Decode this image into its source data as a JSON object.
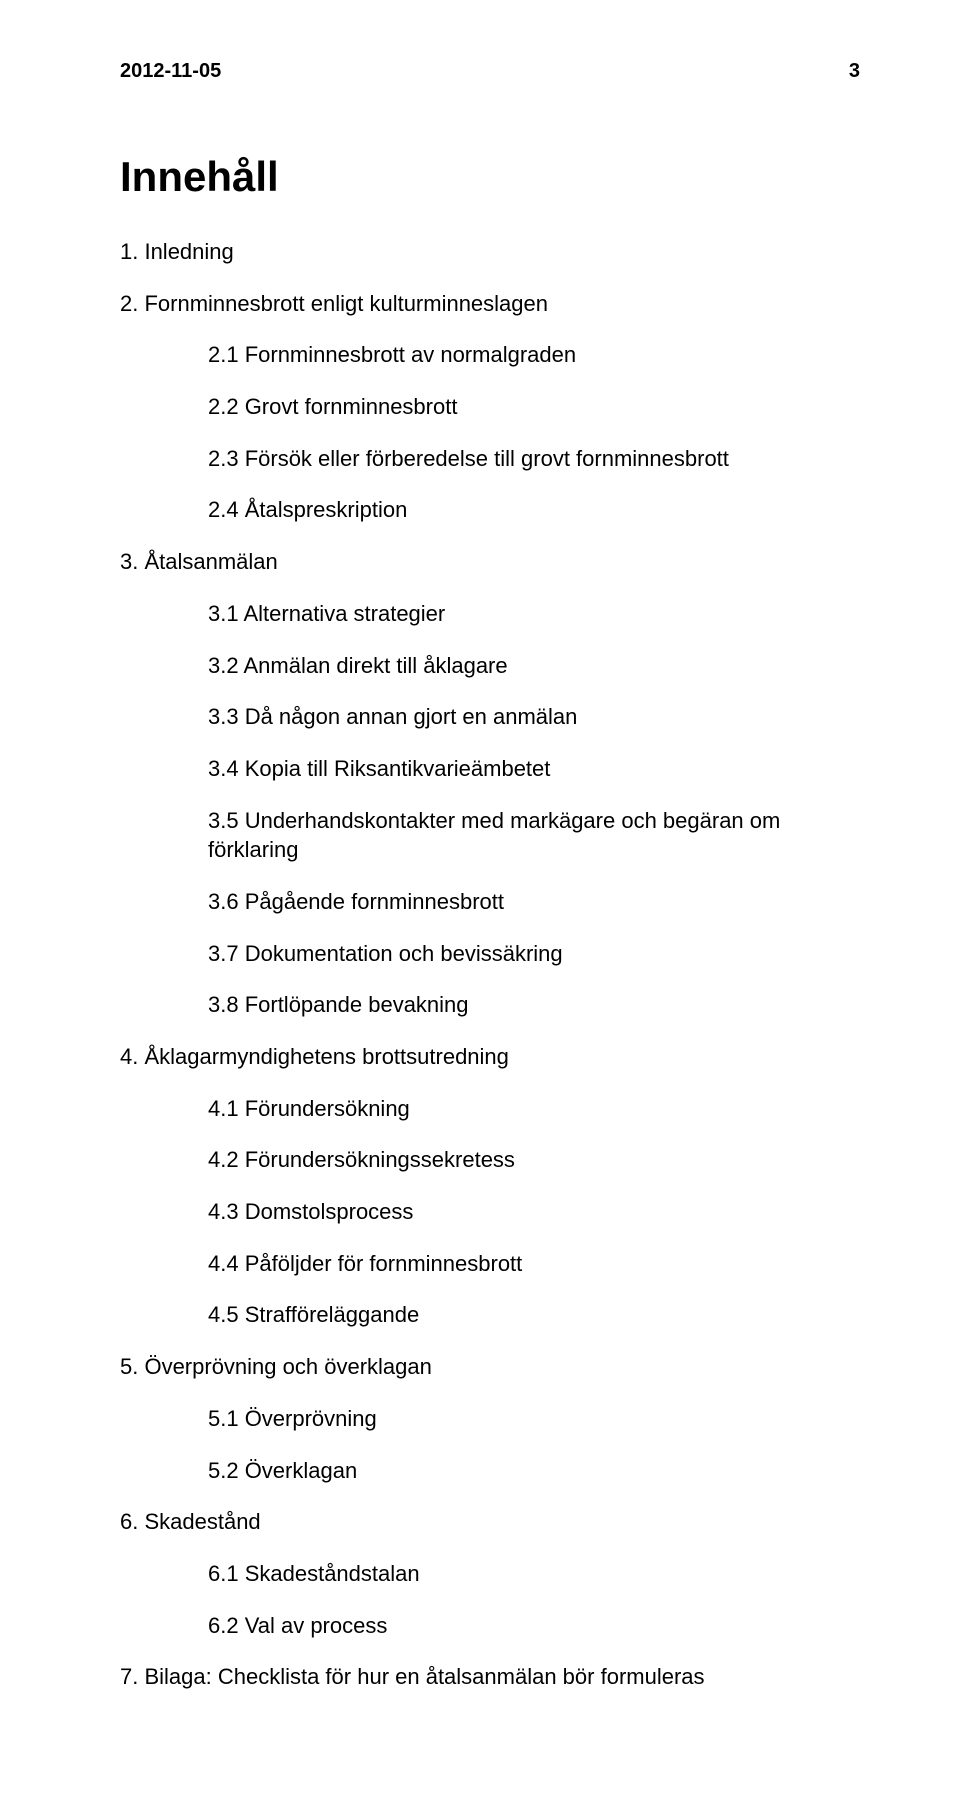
{
  "header": {
    "date": "2012-11-05",
    "page_number": "3"
  },
  "title": "Innehåll",
  "toc": {
    "s1": {
      "heading": "1. Inledning"
    },
    "s2": {
      "heading": "2. Fornminnesbrott enligt kulturminneslagen",
      "items": {
        "i1": "2.1 Fornminnesbrott av normalgraden",
        "i2": "2.2 Grovt fornminnesbrott",
        "i3": "2.3 Försök eller förberedelse till grovt fornminnesbrott",
        "i4": "2.4 Åtalspreskription"
      }
    },
    "s3": {
      "heading": "3. Åtalsanmälan",
      "items": {
        "i1": "3.1 Alternativa strategier",
        "i2": "3.2 Anmälan direkt till åklagare",
        "i3": "3.3 Då någon annan gjort en anmälan",
        "i4": "3.4 Kopia till Riksantikvarieämbetet",
        "i5": "3.5 Underhandskontakter med markägare och begäran om förklaring",
        "i6": "3.6 Pågående fornminnesbrott",
        "i7": "3.7 Dokumentation och bevissäkring",
        "i8": "3.8 Fortlöpande bevakning"
      }
    },
    "s4": {
      "heading": "4. Åklagarmyndighetens brottsutredning",
      "items": {
        "i1": "4.1 Förundersökning",
        "i2": "4.2 Förundersökningssekretess",
        "i3": "4.3 Domstolsprocess",
        "i4": "4.4 Påföljder för fornminnesbrott",
        "i5": "4.5 Strafföreläggande"
      }
    },
    "s5": {
      "heading": "5. Överprövning och överklagan",
      "items": {
        "i1": "5.1 Överprövning",
        "i2": "5.2 Överklagan"
      }
    },
    "s6": {
      "heading": "6. Skadestånd",
      "items": {
        "i1": "6.1 Skadeståndstalan",
        "i2": "6.2 Val av process"
      }
    },
    "s7": {
      "heading": "7. Bilaga: Checklista för hur en åtalsanmälan bör formuleras"
    }
  }
}
